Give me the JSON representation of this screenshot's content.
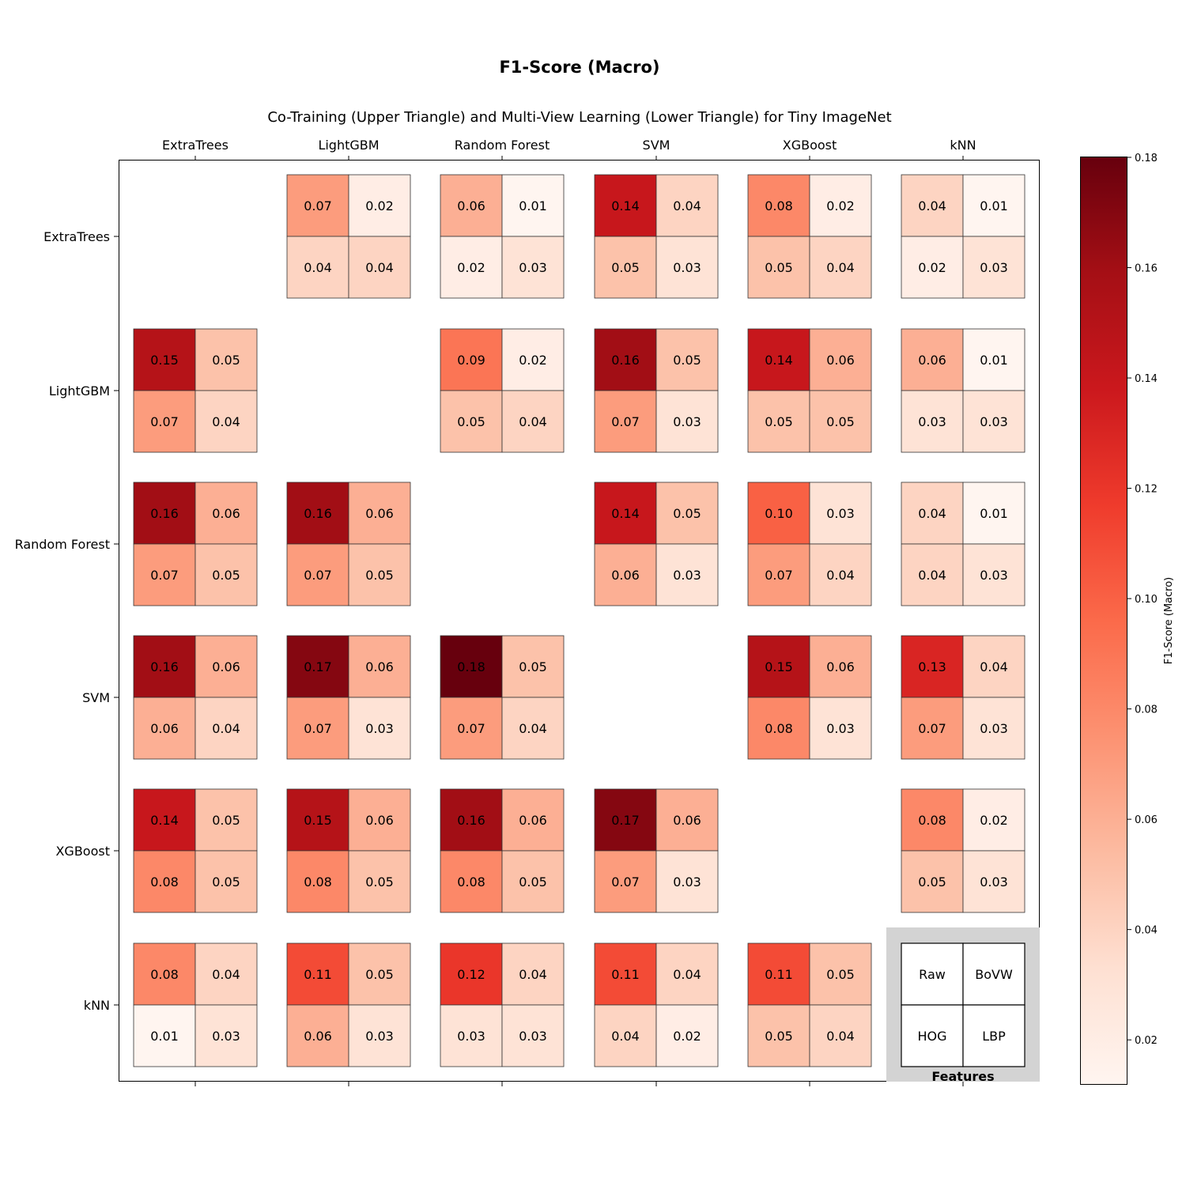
{
  "chart_data": {
    "type": "heatmap",
    "title": "F1-Score (Macro)",
    "subtitle": "Co-Training (Upper Triangle) and Multi-View Learning (Lower Triangle) for Tiny ImageNet",
    "models": [
      "ExtraTrees",
      "LightGBM",
      "Random Forest",
      "SVM",
      "XGBoost",
      "kNN"
    ],
    "cell_layout": [
      [
        "Raw",
        "BoVW"
      ],
      [
        "HOG",
        "LBP"
      ]
    ],
    "legend_title": "Features",
    "legend_placement": "bottom-right",
    "colorbar": {
      "label": "F1-Score (Macro)",
      "range": [
        0.012,
        0.18
      ],
      "ticks": [
        "0.02",
        "0.04",
        "0.06",
        "0.08",
        "0.10",
        "0.12",
        "0.14",
        "0.16",
        "0.18"
      ]
    },
    "colormap": {
      "light": "#fff5f0",
      "dark": "#67000d"
    },
    "values": [
      [
        null,
        [
          [
            0.07,
            0.02
          ],
          [
            0.04,
            0.04
          ]
        ],
        [
          [
            0.06,
            0.01
          ],
          [
            0.02,
            0.03
          ]
        ],
        [
          [
            0.14,
            0.04
          ],
          [
            0.05,
            0.03
          ]
        ],
        [
          [
            0.08,
            0.02
          ],
          [
            0.05,
            0.04
          ]
        ],
        [
          [
            0.04,
            0.01
          ],
          [
            0.02,
            0.03
          ]
        ]
      ],
      [
        [
          [
            0.15,
            0.05
          ],
          [
            0.07,
            0.04
          ]
        ],
        null,
        [
          [
            0.09,
            0.02
          ],
          [
            0.05,
            0.04
          ]
        ],
        [
          [
            0.16,
            0.05
          ],
          [
            0.07,
            0.03
          ]
        ],
        [
          [
            0.14,
            0.06
          ],
          [
            0.05,
            0.05
          ]
        ],
        [
          [
            0.06,
            0.01
          ],
          [
            0.03,
            0.03
          ]
        ]
      ],
      [
        [
          [
            0.16,
            0.06
          ],
          [
            0.07,
            0.05
          ]
        ],
        [
          [
            0.16,
            0.06
          ],
          [
            0.07,
            0.05
          ]
        ],
        null,
        [
          [
            0.14,
            0.05
          ],
          [
            0.06,
            0.03
          ]
        ],
        [
          [
            0.1,
            0.03
          ],
          [
            0.07,
            0.04
          ]
        ],
        [
          [
            0.04,
            0.01
          ],
          [
            0.04,
            0.03
          ]
        ]
      ],
      [
        [
          [
            0.16,
            0.06
          ],
          [
            0.06,
            0.04
          ]
        ],
        [
          [
            0.17,
            0.06
          ],
          [
            0.07,
            0.03
          ]
        ],
        [
          [
            0.18,
            0.05
          ],
          [
            0.07,
            0.04
          ]
        ],
        null,
        [
          [
            0.15,
            0.06
          ],
          [
            0.08,
            0.03
          ]
        ],
        [
          [
            0.13,
            0.04
          ],
          [
            0.07,
            0.03
          ]
        ]
      ],
      [
        [
          [
            0.14,
            0.05
          ],
          [
            0.08,
            0.05
          ]
        ],
        [
          [
            0.15,
            0.06
          ],
          [
            0.08,
            0.05
          ]
        ],
        [
          [
            0.16,
            0.06
          ],
          [
            0.08,
            0.05
          ]
        ],
        [
          [
            0.17,
            0.06
          ],
          [
            0.07,
            0.03
          ]
        ],
        null,
        [
          [
            0.08,
            0.02
          ],
          [
            0.05,
            0.03
          ]
        ]
      ],
      [
        [
          [
            0.08,
            0.04
          ],
          [
            0.01,
            0.03
          ]
        ],
        [
          [
            0.11,
            0.05
          ],
          [
            0.06,
            0.03
          ]
        ],
        [
          [
            0.12,
            0.04
          ],
          [
            0.03,
            0.03
          ]
        ],
        [
          [
            0.11,
            0.04
          ],
          [
            0.04,
            0.02
          ]
        ],
        [
          [
            0.11,
            0.05
          ],
          [
            0.05,
            0.04
          ]
        ],
        null
      ]
    ]
  }
}
